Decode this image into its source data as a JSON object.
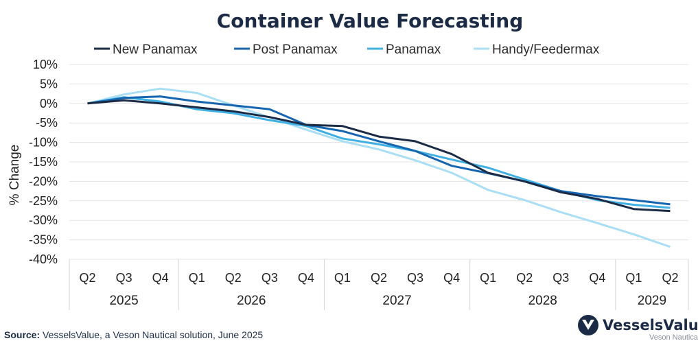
{
  "chart_data": {
    "type": "line",
    "title": "Container Value Forecasting",
    "ylabel": "% Change",
    "xlabel": "",
    "ylim": [
      -40,
      10
    ],
    "y_ticks": [
      "10%",
      "5%",
      "0%",
      "-5%",
      "-10%",
      "-15%",
      "-20%",
      "-25%",
      "-30%",
      "-35%",
      "-40%"
    ],
    "y_tick_values": [
      10,
      5,
      0,
      -5,
      -10,
      -15,
      -20,
      -25,
      -30,
      -35,
      -40
    ],
    "categories": [
      "Q2",
      "Q3",
      "Q4",
      "Q1",
      "Q2",
      "Q3",
      "Q4",
      "Q1",
      "Q2",
      "Q3",
      "Q4",
      "Q1",
      "Q2",
      "Q3",
      "Q4",
      "Q1",
      "Q2"
    ],
    "year_groups": [
      {
        "label": "2025",
        "count": 3
      },
      {
        "label": "2026",
        "count": 4
      },
      {
        "label": "2027",
        "count": 4
      },
      {
        "label": "2028",
        "count": 4
      },
      {
        "label": "2029",
        "count": 2
      }
    ],
    "grid": true,
    "legend_position": "top",
    "series": [
      {
        "name": "New Panamax",
        "color": "#1b2b45",
        "values": [
          0,
          0.8,
          0,
          -1,
          -2,
          -3.5,
          -5.5,
          -5.8,
          -8.5,
          -9.7,
          -13,
          -17.8,
          -20,
          -22.8,
          -24.5,
          -27.1,
          -27.6
        ]
      },
      {
        "name": "Post Panamax",
        "color": "#1565b0",
        "values": [
          0,
          1.4,
          1.8,
          0.5,
          -0.5,
          -1.5,
          -5.5,
          -7.1,
          -9.7,
          -12.2,
          -16,
          -17.9,
          -20,
          -22.5,
          -23.8,
          -24.8,
          -25.9
        ]
      },
      {
        "name": "Panamax",
        "color": "#3fb0e3",
        "values": [
          0,
          1.6,
          0.5,
          -1.5,
          -2.5,
          -4.3,
          -5.8,
          -9,
          -10.5,
          -12.2,
          -14.4,
          -16.5,
          -19.5,
          -22.5,
          -24.8,
          -26,
          -26.8
        ]
      },
      {
        "name": "Handy/Feedermax",
        "color": "#a9def5",
        "values": [
          0,
          2.3,
          3.8,
          2.7,
          -0.5,
          -3.6,
          -6.7,
          -9.7,
          -11.8,
          -14.6,
          -17.8,
          -22.2,
          -24.8,
          -27.9,
          -30.7,
          -33.6,
          -36.8
        ]
      }
    ]
  },
  "source": {
    "label": "Source:",
    "text": " VesselsValue, a Veson Nautical solution, June 2025"
  },
  "brand": {
    "name": "VesselsValue",
    "sub": "Veson Nautical"
  }
}
